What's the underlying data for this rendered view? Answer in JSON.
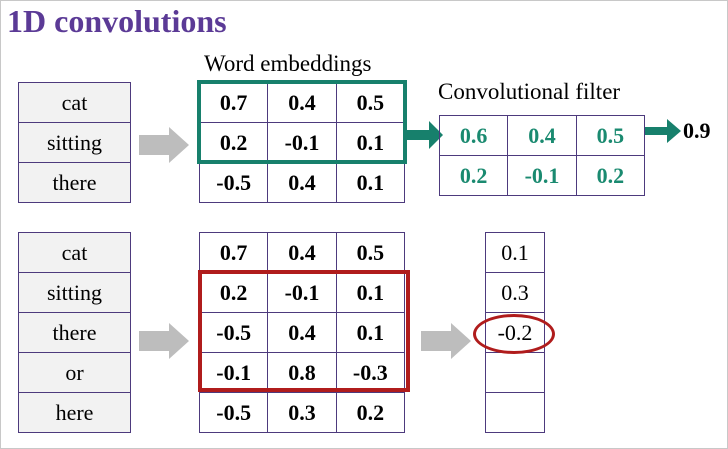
{
  "title": "1D convolutions",
  "top": {
    "embeddings_label": "Word embeddings",
    "filter_label": "Convolutional filter",
    "words": [
      "cat",
      "sitting",
      "there"
    ],
    "embeddings": [
      [
        "0.7",
        "0.4",
        "0.5"
      ],
      [
        "0.2",
        "-0.1",
        "0.1"
      ],
      [
        "-0.5",
        "0.4",
        "0.1"
      ]
    ],
    "filter": [
      [
        "0.6",
        "0.4",
        "0.5"
      ],
      [
        "0.2",
        "-0.1",
        "0.2"
      ]
    ],
    "result": "0.9"
  },
  "bottom": {
    "words": [
      "cat",
      "sitting",
      "there",
      "or",
      "here"
    ],
    "embeddings": [
      [
        "0.7",
        "0.4",
        "0.5"
      ],
      [
        "0.2",
        "-0.1",
        "0.1"
      ],
      [
        "-0.5",
        "0.4",
        "0.1"
      ],
      [
        "-0.1",
        "0.8",
        "-0.3"
      ],
      [
        "-0.5",
        "0.3",
        "0.2"
      ]
    ],
    "outputs": [
      "0.1",
      "0.3",
      "-0.2",
      "",
      ""
    ]
  },
  "colors": {
    "title": "#5b3a96",
    "teal": "#17806c",
    "red": "#b01c1c",
    "arrow_gray": "#bdbdbd",
    "grid_border": "#4d3a7d"
  }
}
